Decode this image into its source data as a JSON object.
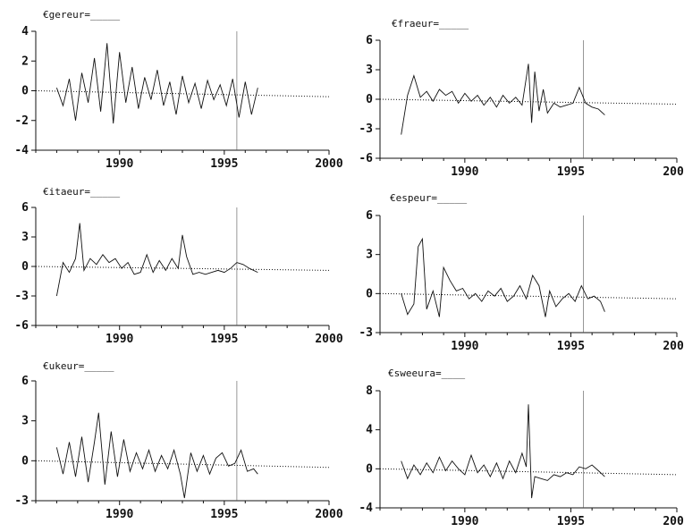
{
  "chart_data": [
    {
      "type": "line",
      "title": "€gereur=_____",
      "xlim": [
        1986,
        2000
      ],
      "ylim": [
        -4,
        4
      ],
      "xticks": [
        1990,
        1995,
        2000
      ],
      "xtick_labels": [
        "1990",
        "1995",
        "2000"
      ],
      "yticks": [
        4,
        2,
        0,
        -2,
        -4
      ],
      "ytick_labels": [
        "4",
        "2",
        "0",
        "-2",
        "-4"
      ],
      "vline_x": 1995.6,
      "grid": false,
      "series": [
        {
          "x": [
            1987.0,
            1987.3,
            1987.6,
            1987.9,
            1988.2,
            1988.5,
            1988.8,
            1989.1,
            1989.4,
            1989.7,
            1990.0,
            1990.3,
            1990.6,
            1990.9,
            1991.2,
            1991.5,
            1991.8,
            1992.1,
            1992.4,
            1992.7,
            1993.0,
            1993.3,
            1993.6,
            1993.9,
            1994.2,
            1994.5,
            1994.8,
            1995.1,
            1995.4,
            1995.7,
            1996.0,
            1996.3,
            1996.6
          ],
          "y": [
            0.2,
            -1.0,
            0.8,
            -2.0,
            1.2,
            -0.8,
            2.2,
            -1.4,
            3.2,
            -2.2,
            2.6,
            -0.8,
            1.6,
            -1.2,
            0.9,
            -0.6,
            1.4,
            -1.0,
            0.6,
            -1.6,
            1.0,
            -0.8,
            0.5,
            -1.2,
            0.7,
            -0.6,
            0.4,
            -1.0,
            0.8,
            -1.8,
            0.6,
            -1.6,
            0.2
          ]
        }
      ],
      "trend": {
        "x": [
          1986,
          2000
        ],
        "y": [
          0.0,
          -0.4
        ]
      }
    },
    {
      "type": "line",
      "title": "€fraeur=_____",
      "xlim": [
        1986,
        2000
      ],
      "ylim": [
        -6,
        6
      ],
      "xticks": [
        1990,
        1995,
        2000
      ],
      "xtick_labels": [
        "1990",
        "1995",
        "2000"
      ],
      "yticks": [
        6,
        3,
        0,
        -3,
        -6
      ],
      "ytick_labels": [
        "6",
        "3",
        "0",
        "-3",
        "-6"
      ],
      "vline_x": 1995.6,
      "grid": false,
      "series": [
        {
          "x": [
            1987.0,
            1987.3,
            1987.6,
            1987.9,
            1988.2,
            1988.5,
            1988.8,
            1989.1,
            1989.4,
            1989.7,
            1990.0,
            1990.3,
            1990.6,
            1990.9,
            1991.2,
            1991.5,
            1991.8,
            1992.1,
            1992.4,
            1992.7,
            1993.0,
            1993.15,
            1993.3,
            1993.5,
            1993.7,
            1993.9,
            1994.2,
            1994.5,
            1994.8,
            1995.1,
            1995.4,
            1995.7,
            1996.0,
            1996.3,
            1996.6
          ],
          "y": [
            -3.6,
            0.4,
            2.4,
            0.2,
            0.8,
            -0.2,
            1.0,
            0.4,
            0.8,
            -0.4,
            0.6,
            -0.2,
            0.4,
            -0.6,
            0.2,
            -0.8,
            0.4,
            -0.4,
            0.2,
            -0.6,
            3.6,
            -2.4,
            2.8,
            -1.2,
            1.0,
            -1.4,
            -0.4,
            -0.8,
            -0.6,
            -0.4,
            1.2,
            -0.4,
            -0.8,
            -1.0,
            -1.6
          ]
        }
      ],
      "trend": {
        "x": [
          1986,
          2000
        ],
        "y": [
          0.0,
          -0.5
        ]
      }
    },
    {
      "type": "line",
      "title": "€itaeur=_____",
      "xlim": [
        1986,
        2000
      ],
      "ylim": [
        -6,
        6
      ],
      "xticks": [
        1990,
        1995,
        2000
      ],
      "xtick_labels": [
        "1990",
        "1995",
        "2000"
      ],
      "yticks": [
        6,
        3,
        0,
        -3,
        -6
      ],
      "ytick_labels": [
        "6",
        "3",
        "0",
        "-3",
        "-6"
      ],
      "vline_x": 1995.6,
      "grid": false,
      "series": [
        {
          "x": [
            1987.0,
            1987.3,
            1987.6,
            1987.9,
            1988.1,
            1988.3,
            1988.6,
            1988.9,
            1989.2,
            1989.5,
            1989.8,
            1990.1,
            1990.4,
            1990.7,
            1991.0,
            1991.3,
            1991.6,
            1991.9,
            1992.2,
            1992.5,
            1992.8,
            1993.0,
            1993.2,
            1993.5,
            1993.8,
            1994.1,
            1994.4,
            1994.7,
            1995.0,
            1995.3,
            1995.6,
            1995.9,
            1996.2,
            1996.6
          ],
          "y": [
            -3.0,
            0.4,
            -0.6,
            0.8,
            4.4,
            -0.4,
            0.8,
            0.2,
            1.2,
            0.4,
            0.8,
            -0.2,
            0.4,
            -0.8,
            -0.6,
            1.2,
            -0.6,
            0.6,
            -0.4,
            0.8,
            -0.2,
            3.2,
            1.0,
            -0.8,
            -0.6,
            -0.8,
            -0.6,
            -0.4,
            -0.6,
            -0.2,
            0.4,
            0.2,
            -0.2,
            -0.6
          ]
        }
      ],
      "trend": {
        "x": [
          1986,
          2000
        ],
        "y": [
          0.0,
          -0.4
        ]
      }
    },
    {
      "type": "line",
      "title": "€espeur=_____",
      "xlim": [
        1986,
        2000
      ],
      "ylim": [
        -3,
        6
      ],
      "xticks": [
        1990,
        1995,
        2000
      ],
      "xtick_labels": [
        "1990",
        "1995",
        "2000"
      ],
      "yticks": [
        6,
        3,
        0,
        -3
      ],
      "ytick_labels": [
        "6",
        "3",
        "0",
        "-3"
      ],
      "vline_x": 1995.6,
      "grid": false,
      "series": [
        {
          "x": [
            1987.0,
            1987.3,
            1987.6,
            1987.8,
            1988.0,
            1988.2,
            1988.5,
            1988.8,
            1989.0,
            1989.3,
            1989.6,
            1989.9,
            1990.2,
            1990.5,
            1990.8,
            1991.1,
            1991.4,
            1991.7,
            1992.0,
            1992.3,
            1992.6,
            1992.9,
            1993.2,
            1993.5,
            1993.8,
            1994.0,
            1994.3,
            1994.6,
            1994.9,
            1995.2,
            1995.5,
            1995.8,
            1996.1,
            1996.4,
            1996.6
          ],
          "y": [
            0.0,
            -1.6,
            -0.8,
            3.6,
            4.2,
            -1.2,
            0.2,
            -1.8,
            2.0,
            1.0,
            0.2,
            0.4,
            -0.4,
            0.0,
            -0.6,
            0.2,
            -0.2,
            0.4,
            -0.6,
            -0.2,
            0.6,
            -0.4,
            1.4,
            0.6,
            -1.8,
            0.2,
            -1.0,
            -0.4,
            0.0,
            -0.6,
            0.6,
            -0.4,
            -0.2,
            -0.6,
            -1.4
          ]
        }
      ],
      "trend": {
        "x": [
          1986,
          2000
        ],
        "y": [
          0.0,
          -0.4
        ]
      }
    },
    {
      "type": "line",
      "title": "€ukeur=_____",
      "xlim": [
        1986,
        2000
      ],
      "ylim": [
        -3,
        6
      ],
      "xticks": [
        1990,
        1995,
        2000
      ],
      "xtick_labels": [
        "1990",
        "1995",
        "2000"
      ],
      "yticks": [
        6,
        3,
        0,
        -3
      ],
      "ytick_labels": [
        "6",
        "3",
        "0",
        "-3"
      ],
      "vline_x": 1995.6,
      "grid": false,
      "series": [
        {
          "x": [
            1987.0,
            1987.3,
            1987.6,
            1987.9,
            1988.2,
            1988.5,
            1988.8,
            1989.0,
            1989.3,
            1989.6,
            1989.9,
            1990.2,
            1990.5,
            1990.8,
            1991.1,
            1991.4,
            1991.7,
            1992.0,
            1992.3,
            1992.6,
            1992.9,
            1993.1,
            1993.4,
            1993.7,
            1994.0,
            1994.3,
            1994.6,
            1994.9,
            1995.2,
            1995.5,
            1995.8,
            1996.1,
            1996.4,
            1996.6
          ],
          "y": [
            1.0,
            -1.0,
            1.4,
            -1.2,
            1.8,
            -1.6,
            1.4,
            3.6,
            -1.8,
            2.2,
            -1.2,
            1.6,
            -0.8,
            0.6,
            -0.6,
            0.8,
            -0.8,
            0.4,
            -0.6,
            0.8,
            -1.0,
            -2.8,
            0.6,
            -0.8,
            0.4,
            -1.0,
            0.2,
            0.6,
            -0.4,
            -0.2,
            0.8,
            -0.8,
            -0.6,
            -1.0
          ]
        }
      ],
      "trend": {
        "x": [
          1986,
          2000
        ],
        "y": [
          0.0,
          -0.5
        ]
      }
    },
    {
      "type": "line",
      "title": "€sweeura=____",
      "xlim": [
        1986,
        2000
      ],
      "ylim": [
        -4,
        8
      ],
      "xticks": [
        1990,
        1995,
        2000
      ],
      "xtick_labels": [
        "1990",
        "1995",
        "2000"
      ],
      "yticks": [
        8,
        4,
        0,
        -4
      ],
      "ytick_labels": [
        "8",
        "4",
        "0",
        "-4"
      ],
      "vline_x": 1995.6,
      "grid": false,
      "series": [
        {
          "x": [
            1987.0,
            1987.3,
            1987.6,
            1987.9,
            1988.2,
            1988.5,
            1988.8,
            1989.1,
            1989.4,
            1989.7,
            1990.0,
            1990.3,
            1990.6,
            1990.9,
            1991.2,
            1991.5,
            1991.8,
            1992.1,
            1992.4,
            1992.7,
            1992.9,
            1993.0,
            1993.15,
            1993.3,
            1993.6,
            1993.9,
            1994.2,
            1994.5,
            1994.8,
            1995.1,
            1995.4,
            1995.7,
            1996.0,
            1996.3,
            1996.6
          ],
          "y": [
            0.8,
            -1.0,
            0.4,
            -0.6,
            0.6,
            -0.4,
            1.2,
            -0.2,
            0.8,
            0.0,
            -0.6,
            1.4,
            -0.4,
            0.4,
            -0.8,
            0.6,
            -1.0,
            0.8,
            -0.4,
            1.6,
            0.2,
            6.6,
            -3.0,
            -0.8,
            -1.0,
            -1.2,
            -0.6,
            -0.8,
            -0.4,
            -0.6,
            0.2,
            0.0,
            0.4,
            -0.2,
            -0.8
          ]
        }
      ],
      "trend": {
        "x": [
          1986,
          2000
        ],
        "y": [
          0.0,
          -0.6
        ]
      }
    }
  ]
}
